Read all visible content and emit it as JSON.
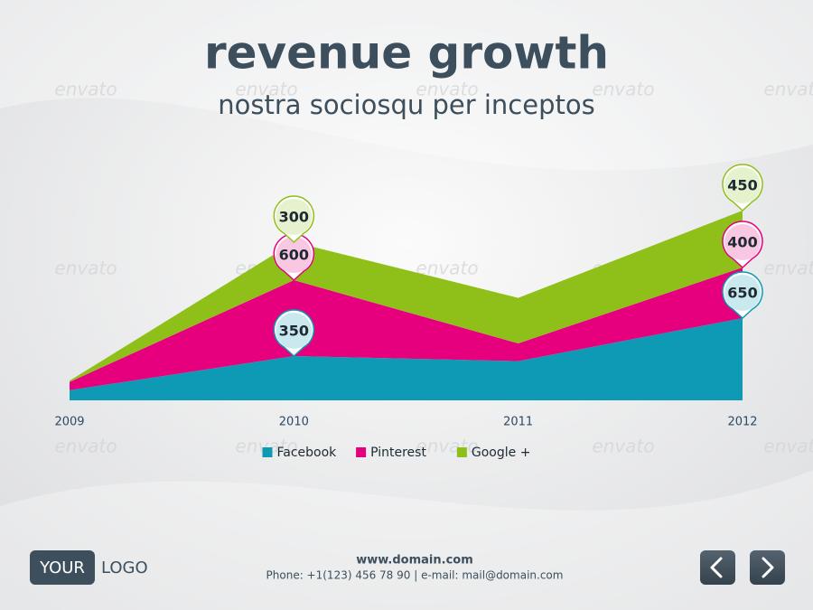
{
  "chart_data": {
    "type": "stacked-area",
    "title": "revenue growth",
    "subtitle": "nostra sociosqu per inceptos",
    "categories": [
      "2009",
      "2010",
      "2011",
      "2012"
    ],
    "series": [
      {
        "name": "Facebook",
        "color": "#0e9ab5",
        "values": [
          80,
          350,
          310,
          650
        ],
        "value_labels": [
          null,
          "350",
          null,
          "650"
        ]
      },
      {
        "name": "Pinterest",
        "color": "#e6007e",
        "values": [
          65,
          600,
          140,
          400
        ],
        "value_labels": [
          null,
          "600",
          null,
          "400"
        ]
      },
      {
        "name": "Google +",
        "color": "#8fc01a",
        "values": [
          10,
          300,
          360,
          450
        ],
        "value_labels": [
          null,
          "300",
          null,
          "450"
        ]
      }
    ]
  },
  "watermark": "envato",
  "footer": {
    "website": "www.domain.com",
    "contact": "Phone: +1(123) 456 78 90 | e-mail: mail@domain.com"
  },
  "logo": {
    "left": "YOUR",
    "right": "LOGO"
  }
}
